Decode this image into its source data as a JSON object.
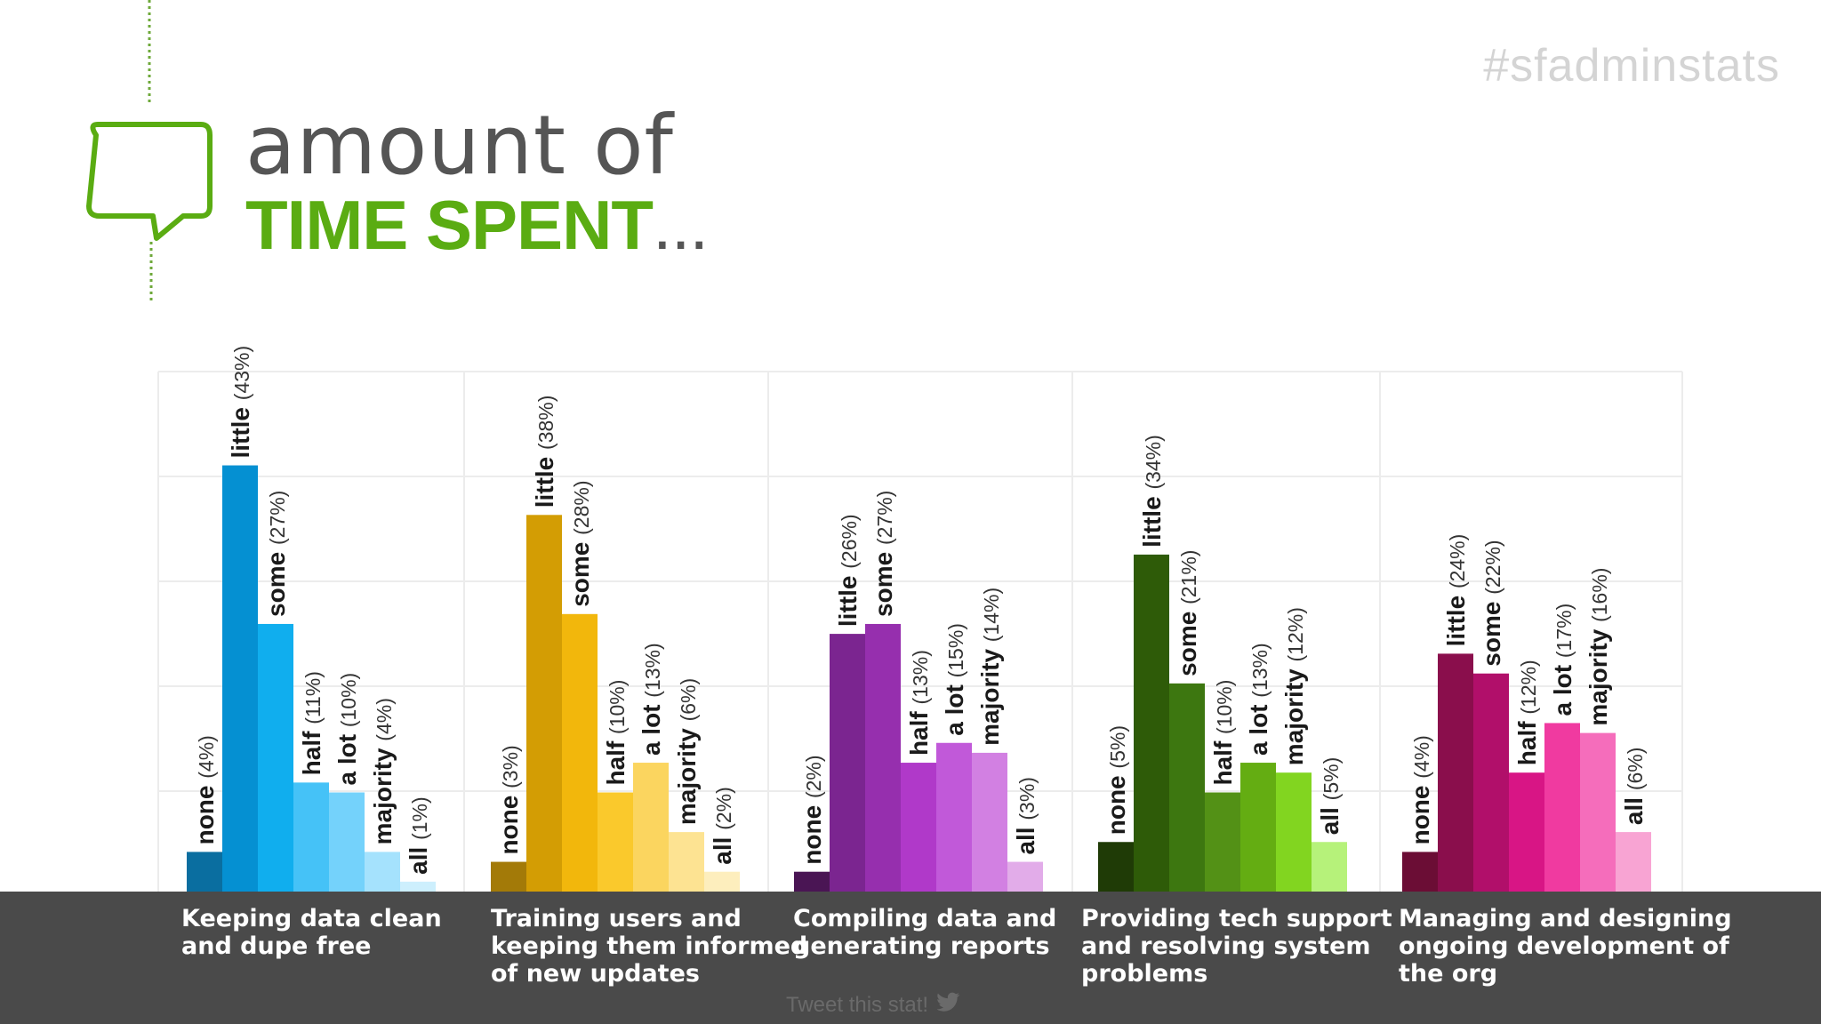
{
  "hashtag": "#sfadminstats",
  "title": {
    "line1": "amount of",
    "line2": "TIME SPENT",
    "line2_suffix": "..."
  },
  "footer": {
    "tweet_label": "Tweet this stat!",
    "tweet_icon": "twitter-bird-icon"
  },
  "chart_data": {
    "type": "bar",
    "ylim": [
      0,
      50
    ],
    "grid": true,
    "levels": [
      "none",
      "little",
      "some",
      "half",
      "a lot",
      "majority",
      "all"
    ],
    "categories": [
      {
        "name": "Keeping data clean\nand dupe free",
        "values": [
          4,
          43,
          27,
          11,
          10,
          4,
          1
        ],
        "labels": [
          "(4%)",
          "(43%)",
          "(27%)",
          "(11%)",
          "(10%)",
          "(4%)",
          "(1%)"
        ],
        "colors": [
          "#0a6ea0",
          "#0590d2",
          "#10aeee",
          "#45c2f7",
          "#74d2fb",
          "#a5e2fd",
          "#cdeffd"
        ]
      },
      {
        "name": "Training users and\nkeeping them informed\nof new updates",
        "values": [
          3,
          38,
          28,
          10,
          13,
          6,
          2
        ],
        "labels": [
          "(3%)",
          "(38%)",
          "(28%)",
          "(10%)",
          "(13%)",
          "(6%)",
          "(2%)"
        ],
        "colors": [
          "#a37a08",
          "#d39d04",
          "#f2b70c",
          "#fac92c",
          "#fbd55f",
          "#fde392",
          "#fdeebd"
        ]
      },
      {
        "name": "Compiling data and\ngenerating reports",
        "values": [
          2,
          26,
          27,
          13,
          15,
          14,
          3
        ],
        "labels": [
          "(2%)",
          "(26%)",
          "(27%)",
          "(13%)",
          "(15%)",
          "(14%)",
          "(3%)"
        ],
        "colors": [
          "#4a1554",
          "#7b2590",
          "#962fae",
          "#b039c9",
          "#c159d9",
          "#d280e2",
          "#e2ace9"
        ]
      },
      {
        "name": "Providing tech support\nand resolving system\nproblems",
        "values": [
          5,
          34,
          21,
          10,
          13,
          12,
          5
        ],
        "labels": [
          "(5%)",
          "(34%)",
          "(21%)",
          "(10%)",
          "(13%)",
          "(12%)",
          "(5%)"
        ],
        "colors": [
          "#1f3b06",
          "#2e5b08",
          "#3d7710",
          "#539116",
          "#64ad12",
          "#82d520",
          "#b6f27a"
        ]
      },
      {
        "name": "Managing and designing\nongoing development of\nthe org",
        "values": [
          4,
          24,
          22,
          12,
          17,
          16,
          6
        ],
        "labels": [
          "(4%)",
          "(24%)",
          "(22%)",
          "(12%)",
          "(17%)",
          "(16%)",
          "(6%)"
        ],
        "colors": [
          "#6b0d35",
          "#8a0e4c",
          "#b10f6a",
          "#d81585",
          "#f03aa0",
          "#f56dbb",
          "#f8a4d3"
        ]
      }
    ]
  }
}
